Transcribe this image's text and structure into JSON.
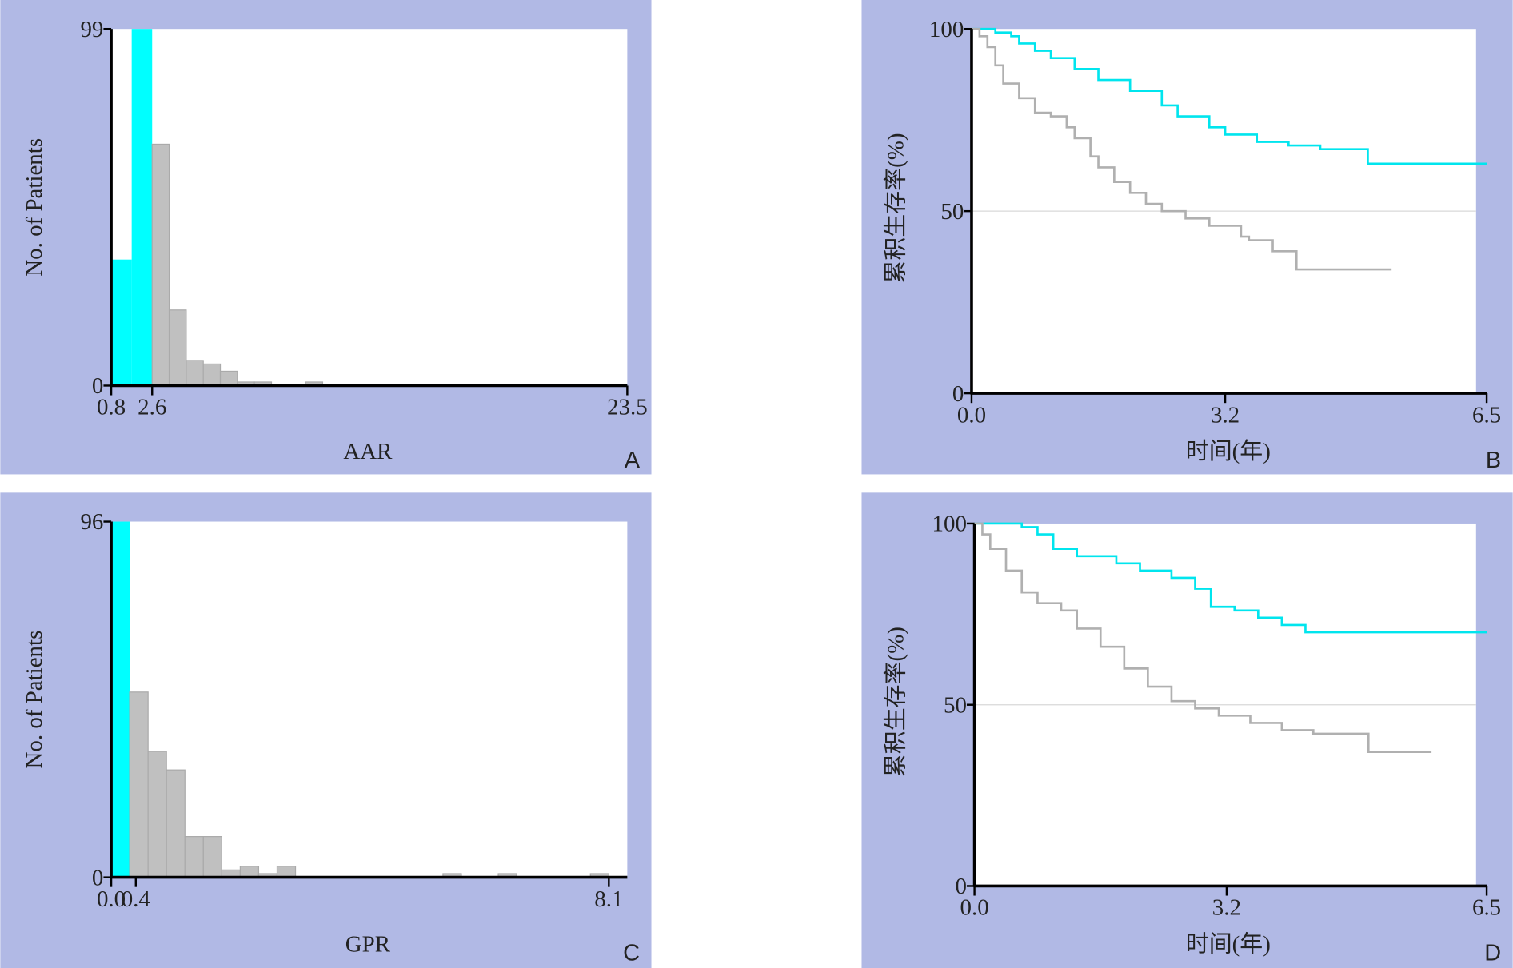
{
  "chart_data": [
    {
      "type": "histogram",
      "xlabel": "AAR",
      "ylabel": "No. of Patients",
      "panel_label": "A",
      "bins": [
        0.8,
        1.7,
        2.6,
        3.35,
        4.1,
        4.85,
        5.6,
        6.35,
        7.1,
        7.85,
        8.6,
        9.35,
        10.1
      ],
      "values": [
        35,
        99,
        67,
        21,
        7,
        6,
        4,
        1,
        1,
        0,
        0,
        1
      ],
      "colors": [
        "#00ffff",
        "#00ffff",
        "#c0c0c0",
        "#c0c0c0",
        "#c0c0c0",
        "#c0c0c0",
        "#c0c0c0",
        "#c0c0c0",
        "#c0c0c0",
        "#c0c0c0",
        "#c0c0c0",
        "#c0c0c0"
      ],
      "xlim": [
        0.8,
        23.5
      ],
      "xticks": [
        0.8,
        2.6,
        23.5
      ],
      "ylim": [
        0,
        99
      ],
      "yticks": [
        0,
        99
      ]
    },
    {
      "type": "line",
      "xlabel": "时间(年)",
      "ylabel": "累积生存率(%)",
      "panel_label": "B",
      "step": true,
      "grid": true,
      "series": [
        {
          "color": "#00e5ee",
          "x": [
            0,
            0.3,
            0.5,
            0.6,
            0.8,
            1.0,
            1.3,
            1.6,
            2.0,
            2.4,
            2.6,
            3.0,
            3.2,
            3.6,
            4.0,
            4.4,
            5.0,
            6.5
          ],
          "values": [
            100,
            99,
            98,
            96,
            94,
            92,
            89,
            86,
            83,
            79,
            76,
            73,
            71,
            69,
            68,
            67,
            63,
            63
          ]
        },
        {
          "color": "#b0b0b0",
          "x": [
            0,
            0.1,
            0.2,
            0.3,
            0.4,
            0.6,
            0.8,
            1.0,
            1.2,
            1.3,
            1.5,
            1.6,
            1.8,
            2.0,
            2.2,
            2.4,
            2.7,
            3.0,
            3.4,
            3.5,
            3.8,
            4.1,
            5.3
          ],
          "values": [
            100,
            98,
            95,
            90,
            85,
            81,
            77,
            76,
            73,
            70,
            65,
            62,
            58,
            55,
            52,
            50,
            48,
            46,
            43,
            42,
            39,
            34,
            34
          ]
        }
      ],
      "xlim": [
        0,
        6.5
      ],
      "xticks": [
        {
          "value": 0,
          "label": "0.0"
        },
        3.2,
        6.5
      ],
      "ylim": [
        0,
        100
      ],
      "yticks": [
        0,
        50,
        100
      ]
    },
    {
      "type": "histogram",
      "xlabel": "GPR",
      "ylabel": "No. of Patients",
      "panel_label": "C",
      "bins": [
        0,
        0.3,
        0.6,
        0.9,
        1.2,
        1.5,
        1.8,
        2.1,
        2.4,
        2.7,
        3.0,
        3.3,
        3.6,
        3.9,
        4.2,
        4.5,
        4.8,
        5.1,
        5.4,
        5.7,
        6.0,
        6.3,
        6.6,
        6.9,
        7.2,
        7.5,
        7.8,
        8.1
      ],
      "values": [
        96,
        50,
        34,
        29,
        11,
        11,
        2,
        3,
        1,
        3,
        0,
        0,
        0,
        0,
        0,
        0,
        0,
        0,
        1,
        0,
        0,
        1,
        0,
        0,
        0,
        0,
        1
      ],
      "colors": [
        "#00ffff",
        "#c0c0c0",
        "#c0c0c0",
        "#c0c0c0",
        "#c0c0c0",
        "#c0c0c0",
        "#c0c0c0",
        "#c0c0c0",
        "#c0c0c0",
        "#c0c0c0",
        "#c0c0c0",
        "#c0c0c0",
        "#c0c0c0",
        "#c0c0c0",
        "#c0c0c0",
        "#c0c0c0",
        "#c0c0c0",
        "#c0c0c0",
        "#c0c0c0",
        "#c0c0c0",
        "#c0c0c0",
        "#c0c0c0",
        "#c0c0c0",
        "#c0c0c0",
        "#c0c0c0",
        "#c0c0c0",
        "#c0c0c0"
      ],
      "xlim": [
        0,
        8.4
      ],
      "xticks": [
        {
          "value": 0,
          "label": "0.0"
        },
        0.4,
        8.1
      ],
      "ylim": [
        0,
        96
      ],
      "yticks": [
        0,
        96
      ]
    },
    {
      "type": "line",
      "xlabel": "时间(年)",
      "ylabel": "累积生存率(%)",
      "panel_label": "D",
      "step": true,
      "grid": true,
      "series": [
        {
          "color": "#00e5ee",
          "x": [
            0,
            0.6,
            0.8,
            1.0,
            1.3,
            1.8,
            2.1,
            2.5,
            2.8,
            3.0,
            3.3,
            3.6,
            3.9,
            4.2,
            6.5
          ],
          "values": [
            100,
            99,
            97,
            93,
            91,
            89,
            87,
            85,
            82,
            77,
            76,
            74,
            72,
            70,
            70
          ]
        },
        {
          "color": "#b0b0b0",
          "x": [
            0,
            0.1,
            0.2,
            0.4,
            0.6,
            0.8,
            1.1,
            1.3,
            1.6,
            1.9,
            2.2,
            2.5,
            2.8,
            3.1,
            3.5,
            3.9,
            4.3,
            5.0,
            5.8
          ],
          "values": [
            100,
            97,
            93,
            87,
            81,
            78,
            76,
            71,
            66,
            60,
            55,
            51,
            49,
            47,
            45,
            43,
            42,
            37,
            37
          ]
        }
      ],
      "xlim": [
        0,
        6.5
      ],
      "xticks": [
        {
          "value": 0,
          "label": "0.0"
        },
        3.2,
        6.5
      ],
      "ylim": [
        0,
        100
      ],
      "yticks": [
        0,
        50,
        100
      ]
    }
  ]
}
